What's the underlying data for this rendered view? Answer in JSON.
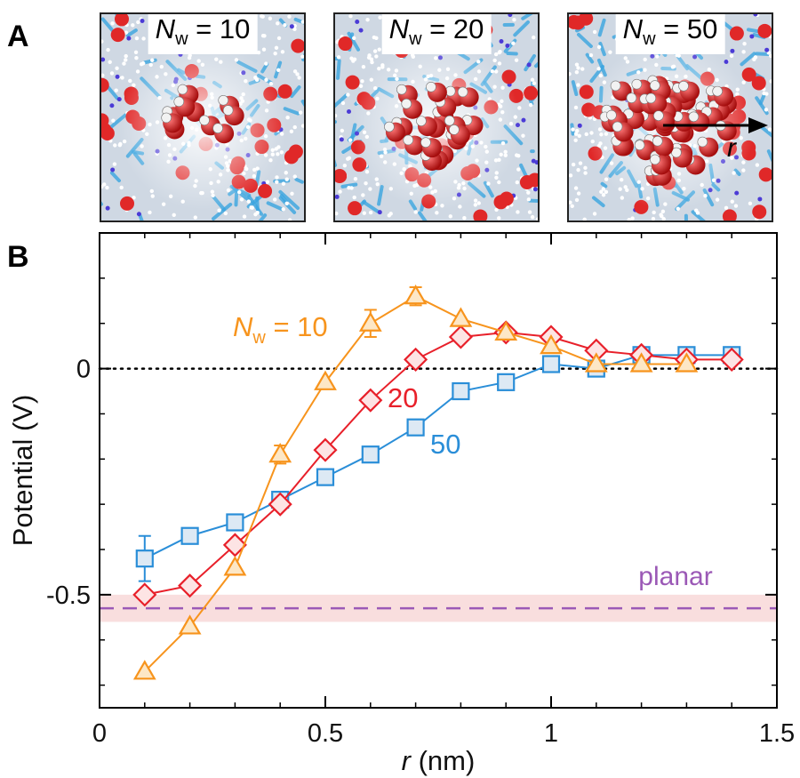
{
  "panel_a": {
    "letter": "A",
    "snapshots": [
      {
        "label_symbol": "N",
        "label_sub": "w",
        "label_rest": " = 10",
        "n_molecules": 10
      },
      {
        "label_symbol": "N",
        "label_sub": "w",
        "label_rest": " = 20",
        "n_molecules": 20
      },
      {
        "label_symbol": "N",
        "label_sub": "w",
        "label_rest": " = 50",
        "n_molecules": 50
      }
    ],
    "radius_arrow_label": "r"
  },
  "panel_b": {
    "letter": "B"
  },
  "chart_data": {
    "type": "line",
    "xlabel_symbol": "r",
    "xlabel_rest": " (nm)",
    "ylabel": "Potential (V)",
    "xlim": [
      0,
      1.5
    ],
    "ylim": [
      -0.75,
      0.3
    ],
    "xticks": [
      0,
      0.5,
      1,
      1.5
    ],
    "xtick_labels": [
      "0",
      "0.5",
      "1",
      "1.5"
    ],
    "yticks": [
      -0.5,
      0
    ],
    "ytick_labels": [
      "-0.5",
      "0"
    ],
    "series": [
      {
        "name_symbol": "N",
        "name_sub": "w",
        "name_rest": " = 10",
        "marker": "triangle",
        "color": "#f7941d",
        "fill": "#fde7c6",
        "x": [
          0.1,
          0.2,
          0.3,
          0.4,
          0.5,
          0.6,
          0.7,
          0.8,
          0.9,
          1.0,
          1.1,
          1.2,
          1.3
        ],
        "y": [
          -0.67,
          -0.57,
          -0.44,
          -0.19,
          -0.03,
          0.1,
          0.16,
          0.11,
          0.08,
          0.05,
          0.01,
          0.01,
          0.01
        ],
        "err": [
          0,
          0,
          0,
          0.02,
          0,
          0.03,
          0.02,
          0,
          0,
          0,
          0,
          0,
          0
        ]
      },
      {
        "name": "20",
        "marker": "diamond",
        "color": "#e8202a",
        "fill": "#fde4e4",
        "x": [
          0.1,
          0.2,
          0.3,
          0.4,
          0.5,
          0.6,
          0.7,
          0.8,
          0.9,
          1.0,
          1.1,
          1.2,
          1.3,
          1.4
        ],
        "y": [
          -0.5,
          -0.48,
          -0.39,
          -0.3,
          -0.18,
          -0.07,
          0.02,
          0.07,
          0.08,
          0.07,
          0.04,
          0.03,
          0.02,
          0.02
        ],
        "err": [
          0,
          0,
          0,
          0,
          0,
          0,
          0,
          0,
          0,
          0,
          0,
          0,
          0,
          0
        ]
      },
      {
        "name": "50",
        "marker": "square",
        "color": "#2a8ed8",
        "fill": "#dde9f4",
        "x": [
          0.1,
          0.2,
          0.3,
          0.4,
          0.5,
          0.6,
          0.7,
          0.8,
          0.9,
          1.0,
          1.1,
          1.2,
          1.3,
          1.4
        ],
        "y": [
          -0.42,
          -0.37,
          -0.34,
          -0.29,
          -0.24,
          -0.19,
          -0.13,
          -0.05,
          -0.03,
          0.01,
          0.0,
          0.03,
          0.03,
          0.03
        ],
        "err": [
          0.05,
          0,
          0,
          0,
          0,
          0,
          0,
          0,
          0,
          0,
          0,
          0,
          0,
          0
        ]
      }
    ],
    "reference": {
      "label": "planar",
      "value": -0.53,
      "band": [
        -0.56,
        -0.5
      ],
      "line_color": "#9b59b6",
      "band_color": "#f9dede"
    },
    "zero_line": true
  }
}
